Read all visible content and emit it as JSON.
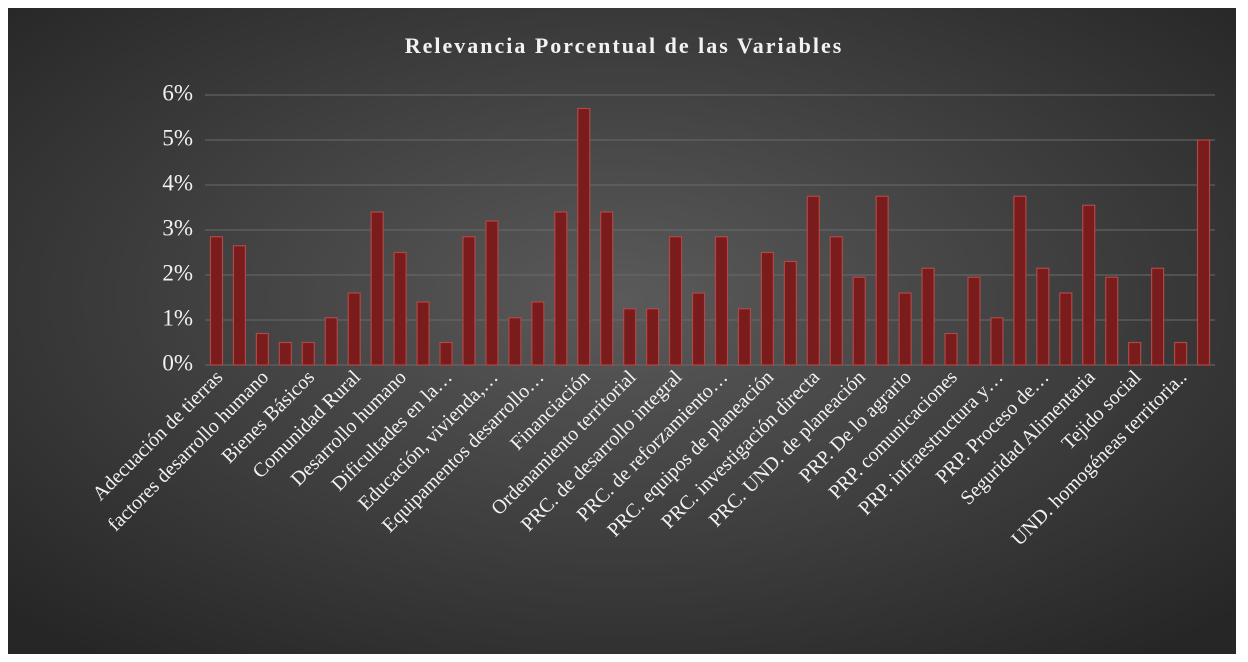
{
  "chart_data": {
    "type": "bar",
    "title": "Relevancia Porcentual de las Variables",
    "categories": [
      "Adecuación de tierras",
      null,
      "factores desarrollo humano",
      null,
      "Bienes Básicos",
      null,
      "Comunidad Rural",
      null,
      "Desarrollo humano",
      null,
      "Dificultades en la…",
      null,
      "Educación, vivienda,…",
      null,
      "Equipamentos desarrollo…",
      null,
      "Financiación",
      null,
      "Ordenamiento territorial",
      null,
      "PRC. de desarrollo integral",
      null,
      "PRC. de reforzamiento…",
      null,
      "PRC. equipos de planeación",
      null,
      "PRC. investigación directa",
      null,
      "PRC. UND. de planeación",
      null,
      "PRP. De lo agrario",
      null,
      "PRP. comunicaciones",
      null,
      "PRP. infraestructura y…",
      null,
      "PRP. Proceso de…",
      null,
      "Seguridad Alimentaria",
      null,
      "Tejido social",
      null,
      "UND. homogéneas territoria..",
      null
    ],
    "values": [
      2.85,
      2.65,
      0.7,
      0.5,
      0.5,
      1.05,
      1.6,
      3.4,
      2.5,
      1.4,
      0.5,
      2.85,
      3.2,
      1.05,
      1.4,
      3.4,
      5.7,
      3.4,
      1.25,
      1.25,
      2.85,
      1.6,
      2.85,
      1.25,
      2.5,
      2.3,
      3.75,
      2.85,
      1.95,
      3.75,
      1.6,
      2.15,
      0.7,
      1.95,
      1.05,
      3.75,
      2.15,
      1.6,
      3.55,
      1.95,
      0.5,
      2.15,
      0.5,
      5.0
    ],
    "color": "#7a1c1c",
    "ylim": [
      0,
      6
    ],
    "yticks": [
      {
        "value": 0,
        "label": "0%"
      },
      {
        "value": 1,
        "label": "1%"
      },
      {
        "value": 2,
        "label": "2%"
      },
      {
        "value": 3,
        "label": "3%"
      },
      {
        "value": 4,
        "label": "4%"
      },
      {
        "value": 5,
        "label": "5%"
      },
      {
        "value": 6,
        "label": "6%"
      }
    ],
    "grid": true
  }
}
